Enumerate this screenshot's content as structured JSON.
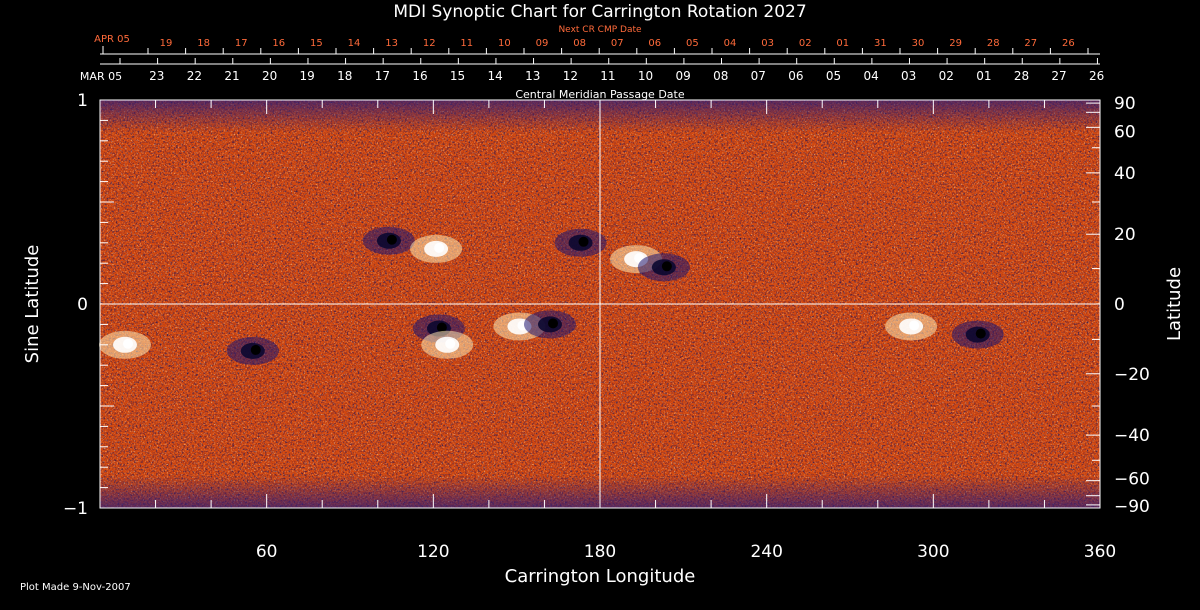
{
  "chart_data": {
    "type": "heatmap",
    "title": "MDI Synoptic Chart for Carrington Rotation 2027",
    "xlabel": "Carrington Longitude",
    "ylabel_left": "Sine Latitude",
    "ylabel_right": "Latitude",
    "xlim": [
      0,
      360
    ],
    "ylim": [
      -1,
      1
    ],
    "x_ticks": [
      "60",
      "120",
      "180",
      "240",
      "300",
      "360"
    ],
    "y_ticks_left": [
      "1",
      "0",
      "−1"
    ],
    "y_ticks_right": [
      "90",
      "60",
      "40",
      "20",
      "0",
      "−20",
      "−40",
      "−60",
      "−90"
    ],
    "top_axis_label": "Central Meridian Passage Date",
    "top_axis_start": "MAR 05",
    "top_axis_dates": [
      "23",
      "22",
      "21",
      "20",
      "19",
      "18",
      "17",
      "16",
      "15",
      "14",
      "13",
      "12",
      "11",
      "10",
      "09",
      "08",
      "07",
      "06",
      "05",
      "04",
      "03",
      "02",
      "01",
      "28",
      "27",
      "26"
    ],
    "next_axis_label": "Next CR CMP Date",
    "next_axis_start": "APR 05",
    "next_axis_dates": [
      "19",
      "18",
      "17",
      "16",
      "15",
      "14",
      "13",
      "12",
      "11",
      "10",
      "09",
      "08",
      "07",
      "06",
      "05",
      "04",
      "03",
      "02",
      "01",
      "31",
      "30",
      "29",
      "28",
      "27",
      "26"
    ],
    "footer": "Plot Made  9-Nov-2007",
    "colors": {
      "background": "#000000",
      "field_base": "#d2480f",
      "positive": "#ffffff",
      "negative": "#1b1470",
      "next_axis": "#ff6a3a"
    },
    "active_regions": [
      {
        "lon": 104,
        "sinlat": 0.31,
        "polarity": "negative"
      },
      {
        "lon": 121,
        "sinlat": 0.27,
        "polarity": "positive"
      },
      {
        "lon": 173,
        "sinlat": 0.3,
        "polarity": "negative"
      },
      {
        "lon": 193,
        "sinlat": 0.22,
        "polarity": "positive"
      },
      {
        "lon": 203,
        "sinlat": 0.18,
        "polarity": "negative"
      },
      {
        "lon": 122,
        "sinlat": -0.12,
        "polarity": "negative"
      },
      {
        "lon": 125,
        "sinlat": -0.2,
        "polarity": "positive"
      },
      {
        "lon": 151,
        "sinlat": -0.11,
        "polarity": "positive"
      },
      {
        "lon": 162,
        "sinlat": -0.1,
        "polarity": "negative"
      },
      {
        "lon": 9,
        "sinlat": -0.2,
        "polarity": "positive"
      },
      {
        "lon": 55,
        "sinlat": -0.23,
        "polarity": "negative"
      },
      {
        "lon": 292,
        "sinlat": -0.11,
        "polarity": "positive"
      },
      {
        "lon": 316,
        "sinlat": -0.15,
        "polarity": "negative"
      }
    ]
  }
}
